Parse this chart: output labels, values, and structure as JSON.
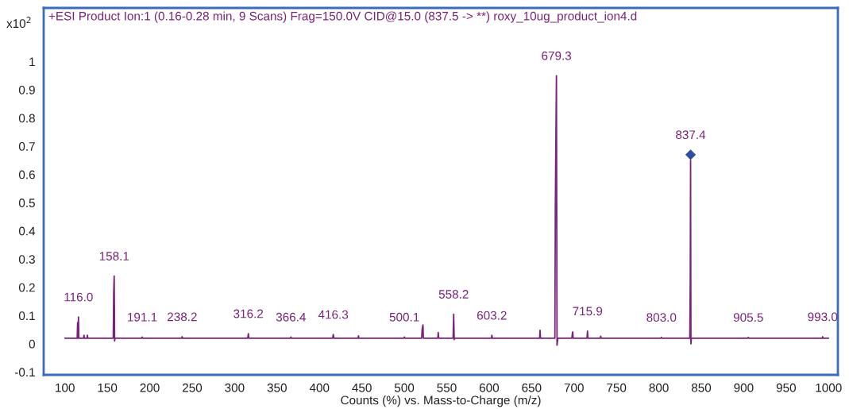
{
  "chart_data": {
    "type": "line",
    "title": "+ESI Product Ion:1 (0.16-0.28 min, 9 Scans) Frag=150.0V CID@15.0 (837.5 -> **) roxy_10ug_product_ion4.d",
    "xlabel": "Counts (%) vs. Mass-to-Charge (m/z)",
    "xlim": [
      75,
      1011
    ],
    "ylim": [
      -0.11,
      1.19
    ],
    "xticks": [
      100,
      150,
      200,
      250,
      300,
      350,
      400,
      450,
      500,
      550,
      600,
      650,
      700,
      750,
      800,
      850,
      900,
      950,
      1000
    ],
    "yticks": [
      -0.1,
      0,
      0.1,
      0.2,
      0.3,
      0.4,
      0.5,
      0.6,
      0.7,
      0.8,
      0.9,
      1
    ],
    "grid": false,
    "series": [
      {
        "marker": "none",
        "color": "#7b237b",
        "x": [
          100,
          114.5,
          115,
          115.5,
          116.0,
          116.5,
          122,
          122.5,
          123,
          126,
          126.5,
          127,
          157,
          157.5,
          158.1,
          158.6,
          159,
          190.6,
          191.1,
          191.6,
          237.7,
          238.2,
          238.7,
          315.5,
          316.2,
          316.8,
          365.9,
          366.4,
          366.9,
          415.5,
          416.3,
          417,
          445.5,
          446,
          446.5,
          499.6,
          500.1,
          500.6,
          520.5,
          521,
          522,
          522.5,
          539.5,
          540,
          540.5,
          557.5,
          558.2,
          558.8,
          559.2,
          602.7,
          603.2,
          603.7,
          659.5,
          660,
          660.5,
          677.5,
          678,
          679.3,
          680,
          681,
          697.5,
          698,
          698.5,
          699,
          715.4,
          715.9,
          716.4,
          731,
          731.5,
          732,
          802.5,
          803.0,
          803.5,
          836.5,
          837,
          837.4,
          837.8,
          838.3,
          905.0,
          905.5,
          906.0,
          992.5,
          993.0,
          993.5,
          1000
        ],
        "values": [
          0.02,
          0.02,
          0.075,
          0.02,
          0.095,
          0.02,
          0.02,
          0.03,
          0.02,
          0.02,
          0.03,
          0.02,
          0.02,
          0.18,
          0.24,
          0.01,
          0.02,
          0.02,
          0.024,
          0.02,
          0.02,
          0.025,
          0.02,
          0.02,
          0.036,
          0.02,
          0.02,
          0.024,
          0.02,
          0.02,
          0.033,
          0.02,
          0.02,
          0.028,
          0.02,
          0.02,
          0.024,
          0.02,
          0.02,
          0.05,
          0.067,
          0.02,
          0.02,
          0.04,
          0.02,
          0.02,
          0.105,
          0.015,
          0.02,
          0.02,
          0.03,
          0.02,
          0.02,
          0.048,
          0.02,
          0.02,
          0.48,
          0.95,
          -0.005,
          0.02,
          0.02,
          0.035,
          0.042,
          0.02,
          0.02,
          0.045,
          0.02,
          0.02,
          0.027,
          0.02,
          0.02,
          0.023,
          0.02,
          0.02,
          0.22,
          0.65,
          0.0,
          0.02,
          0.02,
          0.023,
          0.02,
          0.02,
          0.025,
          0.02,
          0.02
        ]
      },
      {
        "type": "scatter",
        "marker": "diamond",
        "color": "#2e4fa0",
        "x": [
          837.4
        ],
        "values": [
          0.67
        ]
      }
    ],
    "annotations": [
      "x10$^{2}$",
      {
        "text": "116.0",
        "x": 116.0,
        "y": 0.095
      },
      {
        "text": "158.1",
        "x": 158.1,
        "y": 0.24
      },
      {
        "text": "191.1",
        "x": 191.1,
        "y": 0.024
      },
      {
        "text": "238.2",
        "x": 238.2,
        "y": 0.025
      },
      {
        "text": "316.2",
        "x": 316.2,
        "y": 0.036
      },
      {
        "text": "366.4",
        "x": 366.4,
        "y": 0.024
      },
      {
        "text": "416.3",
        "x": 416.3,
        "y": 0.033
      },
      {
        "text": "500.1",
        "x": 500.1,
        "y": 0.024
      },
      {
        "text": "558.2",
        "x": 558.2,
        "y": 0.105
      },
      {
        "text": "603.2",
        "x": 603.2,
        "y": 0.03
      },
      {
        "text": "679.3",
        "x": 679.3,
        "y": 0.95
      },
      {
        "text": "715.9",
        "x": 715.9,
        "y": 0.045
      },
      {
        "text": "803.0",
        "x": 803.0,
        "y": 0.023
      },
      {
        "text": "837.4",
        "x": 837.4,
        "y": 0.67
      },
      {
        "text": "905.5",
        "x": 905.5,
        "y": 0.023
      },
      {
        "text": "993.0",
        "x": 993.0,
        "y": 0.025
      }
    ]
  }
}
